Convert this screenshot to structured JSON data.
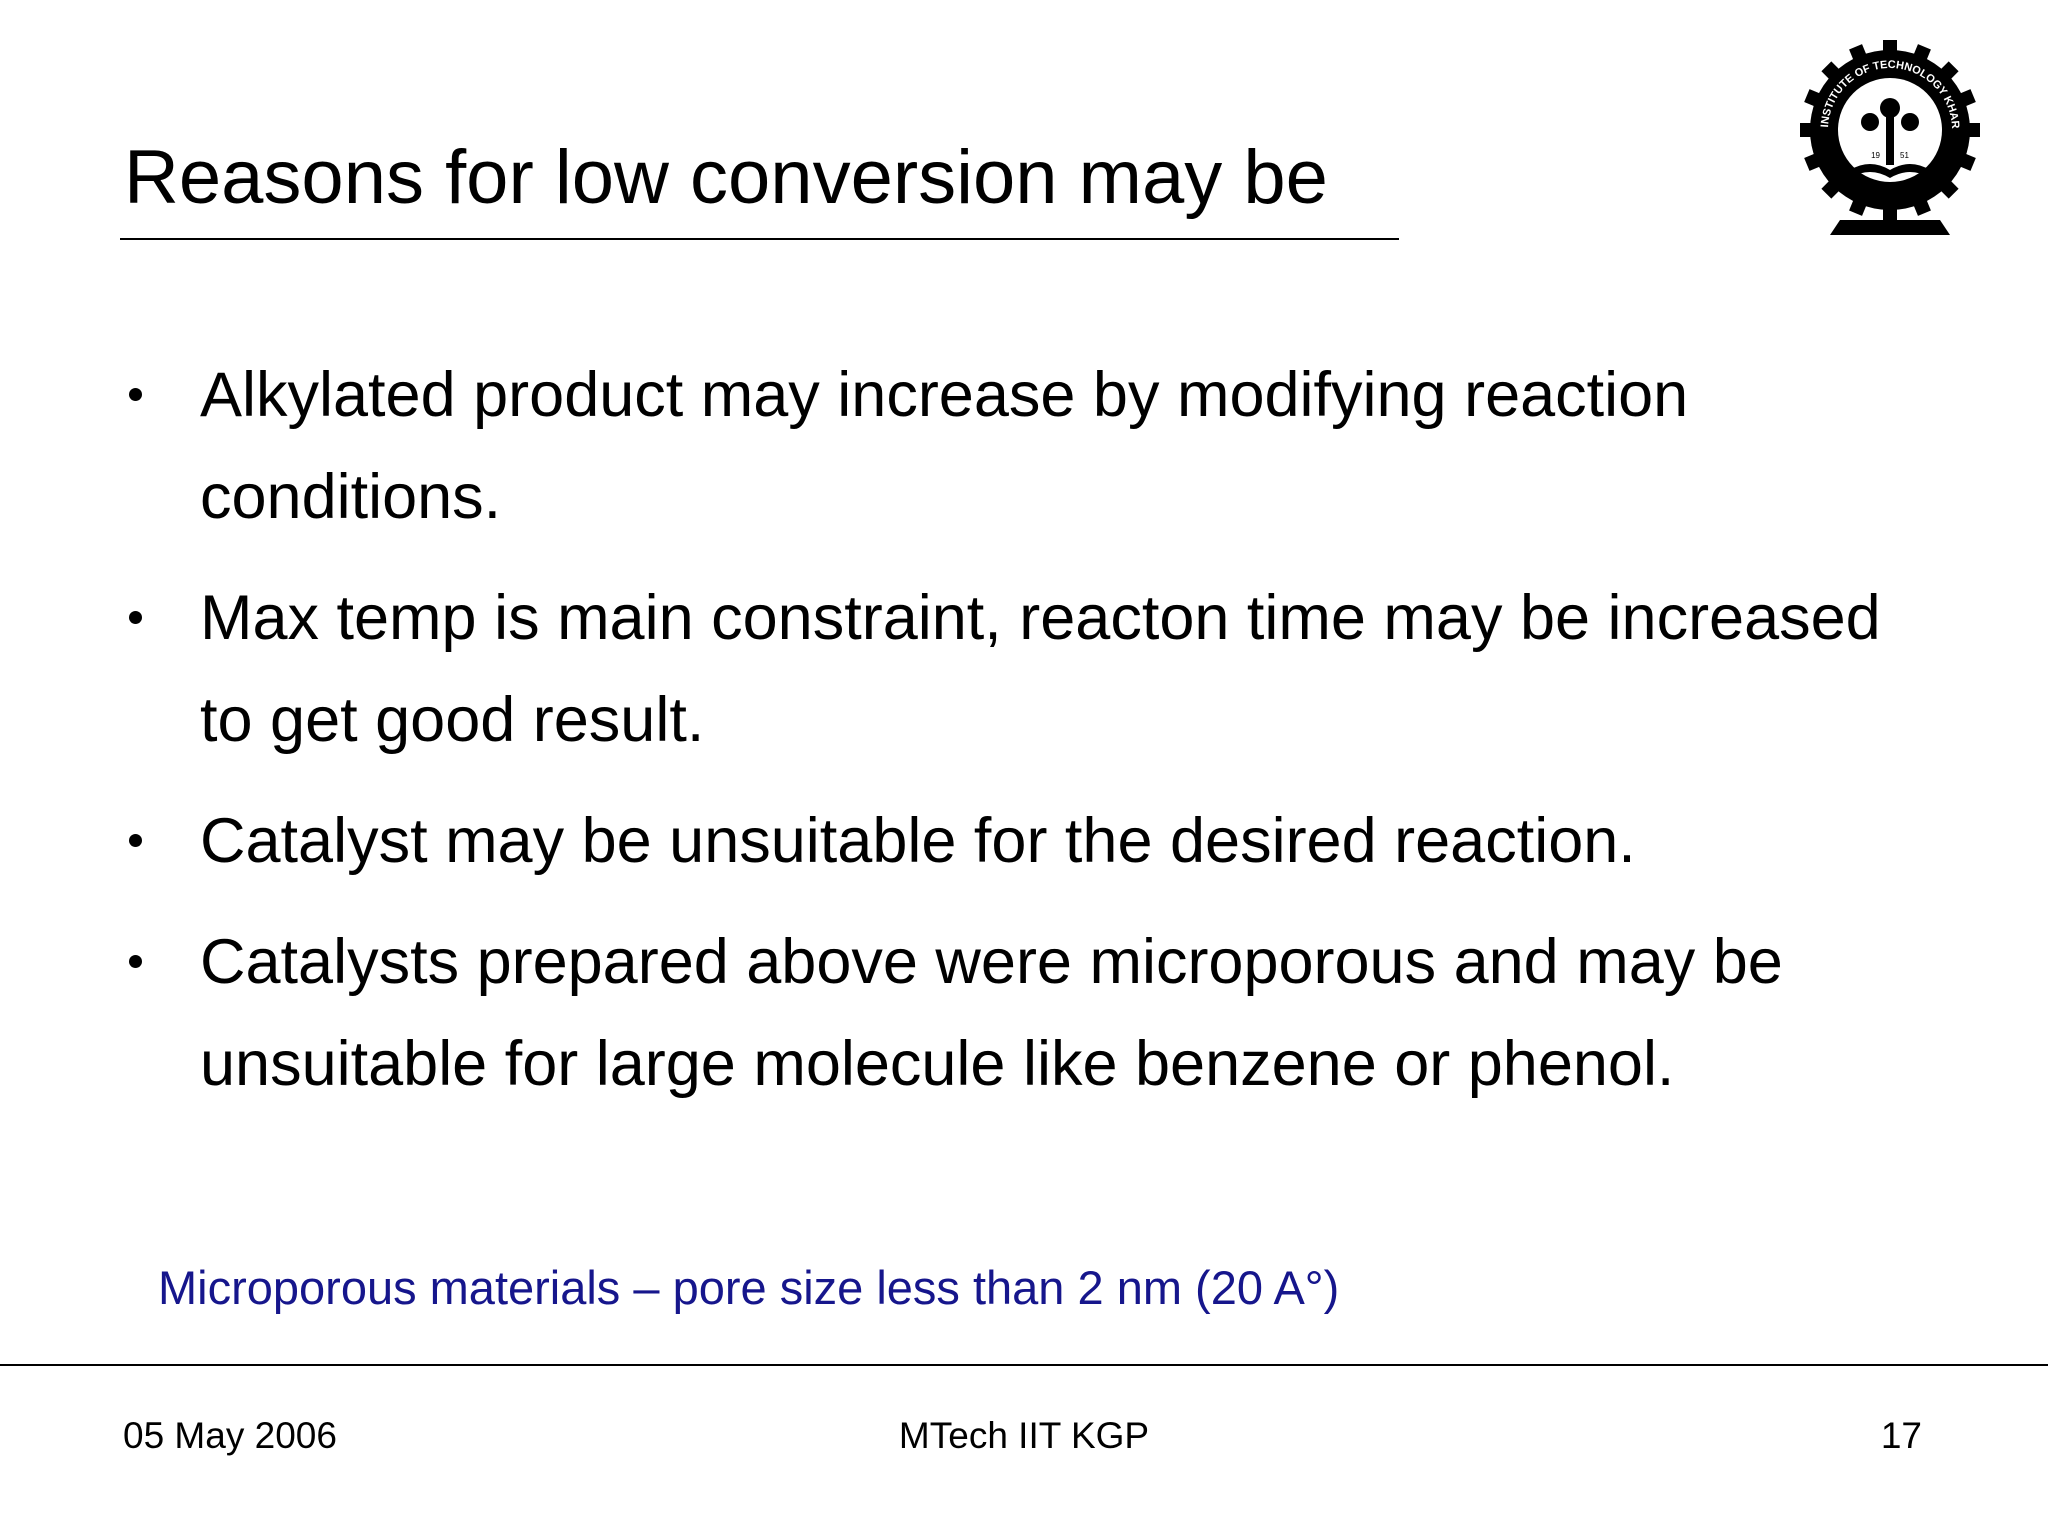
{
  "header": {
    "title": "Reasons for low conversion may be"
  },
  "logo": {
    "ring_text": "INDIAN INSTITUTE OF TECHNOLOGY KHARAGPUR",
    "year_left": "19",
    "year_right": "51"
  },
  "bullets": [
    "Alkylated product may increase by modifying reaction conditions.",
    "Max temp is main constraint, reacton time may be increased to get good result.",
    "Catalyst may be unsuitable for the desired reaction.",
    "Catalysts prepared above were microporous and may be unsuitable for large molecule like benzene or phenol."
  ],
  "note": "Microporous materials – pore size less than 2 nm (20 A°)",
  "footer": {
    "date": "05 May 2006",
    "center": "MTech IIT KGP",
    "page": "17"
  }
}
